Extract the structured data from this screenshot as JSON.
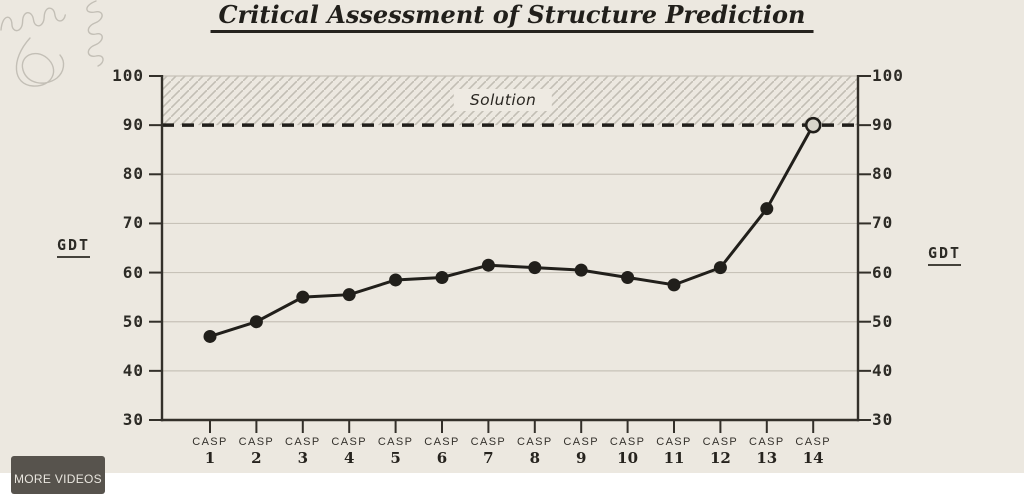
{
  "title": {
    "text": "Critical Assessment of Structure Prediction"
  },
  "chart_data": {
    "type": "line",
    "title": "Critical Assessment of Structure Prediction",
    "x_tick_prefix": "CASP",
    "x_numbers": [
      "1",
      "2",
      "3",
      "4",
      "5",
      "6",
      "7",
      "8",
      "9",
      "10",
      "11",
      "12",
      "13",
      "14"
    ],
    "categories": [
      "CASP 1",
      "CASP 2",
      "CASP 3",
      "CASP 4",
      "CASP 5",
      "CASP 6",
      "CASP 7",
      "CASP 8",
      "CASP 9",
      "CASP 10",
      "CASP 11",
      "CASP 12",
      "CASP 13",
      "CASP 14"
    ],
    "values": [
      47,
      50,
      55,
      55.5,
      58.5,
      59,
      61.5,
      61,
      60.5,
      59,
      57.5,
      61,
      73,
      90
    ],
    "ylabel_left": "GDT",
    "ylabel_right": "GDT",
    "ylim": [
      30,
      100
    ],
    "yticks": [
      100,
      90,
      80,
      70,
      60,
      50,
      40,
      30
    ],
    "grid": true,
    "legend": "none",
    "band": {
      "from": 90,
      "to": 100,
      "label": "Solution",
      "pattern": "diagonal-hatch"
    },
    "threshold": {
      "value": 90,
      "style": "dashed"
    },
    "last_point": {
      "style": "open-circle",
      "category": "CASP 14",
      "value": 90
    }
  },
  "footer": {
    "more_videos": "MORE VIDEOS"
  },
  "icons": {
    "top_left_decoration": "protein-squiggle-doodle-icon"
  },
  "colors": {
    "background": "#ece8e0",
    "ink": "#211f1b",
    "axis": "#33302a",
    "grid": "#c7c2b8",
    "hatch": "#c2beb4",
    "open_point_fill": "#d9d5cb",
    "doodle": "#b6b2a9",
    "button_bg": "#57534d",
    "button_text": "#e9e6df"
  }
}
